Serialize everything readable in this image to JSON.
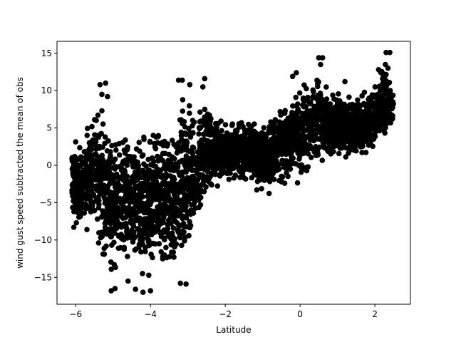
{
  "chart_data": {
    "type": "scatter",
    "title": "",
    "xlabel": "Latitude",
    "ylabel": "wind gust speed subtracted the mean of obs",
    "xlim": [
      -6.5,
      2.95
    ],
    "ylim": [
      -18.6,
      16.6
    ],
    "xticks": [
      -6,
      -4,
      -2,
      0,
      2
    ],
    "xtick_labels": [
      "−6",
      "−4",
      "−2",
      "0",
      "2"
    ],
    "yticks": [
      -15,
      -10,
      -5,
      0,
      5,
      10,
      15
    ],
    "ytick_labels": [
      "−15",
      "−10",
      "−5",
      "0",
      "5",
      "10",
      "15"
    ],
    "grid": false,
    "marker_color": "#000000",
    "envelope": {
      "x": [
        -6.1,
        -5.8,
        -5.5,
        -5.2,
        -4.9,
        -4.6,
        -4.3,
        -4.0,
        -3.7,
        -3.4,
        -3.1,
        -2.8,
        -2.5,
        -2.2,
        -1.9,
        -1.6,
        -1.3,
        -1.0,
        -0.7,
        -0.4,
        -0.1,
        0.2,
        0.5,
        0.8,
        1.1,
        1.4,
        1.7,
        2.0,
        2.3,
        2.5
      ],
      "upper": [
        4.5,
        3.5,
        10.5,
        7.5,
        6.5,
        6.0,
        7.0,
        6.5,
        7.0,
        6.5,
        11.0,
        9.5,
        10.0,
        7.0,
        6.5,
        6.5,
        7.0,
        6.5,
        7.5,
        10.5,
        11.5,
        12.0,
        14.5,
        11.0,
        11.0,
        10.0,
        10.5,
        12.5,
        15.0,
        10.5
      ],
      "lower": [
        -8.5,
        -9.5,
        -12.0,
        -15.5,
        -17.0,
        -15.0,
        -17.0,
        -17.0,
        -15.5,
        -15.5,
        -16.0,
        -12.0,
        -5.0,
        -4.0,
        -3.0,
        -2.5,
        -3.0,
        -5.0,
        -4.5,
        -3.5,
        -3.0,
        -2.5,
        -1.0,
        -0.5,
        0.0,
        0.5,
        0.0,
        1.0,
        2.5,
        4.5
      ]
    },
    "outliers": [
      {
        "x": -5.35,
        "y": 10.8
      },
      {
        "x": -5.3,
        "y": 9.5
      },
      {
        "x": -5.2,
        "y": 11.0
      },
      {
        "x": -5.15,
        "y": 9.2
      },
      {
        "x": -5.3,
        "y": 7.3
      },
      {
        "x": -5.05,
        "y": -16.8
      },
      {
        "x": -4.95,
        "y": -16.5
      },
      {
        "x": -4.2,
        "y": -17.0
      },
      {
        "x": -4.0,
        "y": -16.8
      },
      {
        "x": -3.15,
        "y": 11.4
      },
      {
        "x": -3.25,
        "y": 11.4
      },
      {
        "x": -2.95,
        "y": 10.8
      },
      {
        "x": -2.55,
        "y": 11.6
      },
      {
        "x": -2.6,
        "y": 10.5
      },
      {
        "x": -3.2,
        "y": -15.8
      },
      {
        "x": -3.05,
        "y": -15.9
      },
      {
        "x": -0.1,
        "y": 12.4
      },
      {
        "x": -0.2,
        "y": 11.9
      },
      {
        "x": 0.5,
        "y": 14.4
      },
      {
        "x": 0.6,
        "y": 14.4
      },
      {
        "x": 0.55,
        "y": 13.5
      },
      {
        "x": 2.3,
        "y": 15.1
      },
      {
        "x": 2.4,
        "y": 15.1
      },
      {
        "x": 2.35,
        "y": 13.0
      },
      {
        "x": 2.1,
        "y": 12.8
      },
      {
        "x": 1.2,
        "y": 11.2
      },
      {
        "x": -6.05,
        "y": -8.3
      },
      {
        "x": -5.7,
        "y": -8.6
      },
      {
        "x": -4.6,
        "y": -15.5
      },
      {
        "x": -4.4,
        "y": -16.6
      }
    ]
  }
}
